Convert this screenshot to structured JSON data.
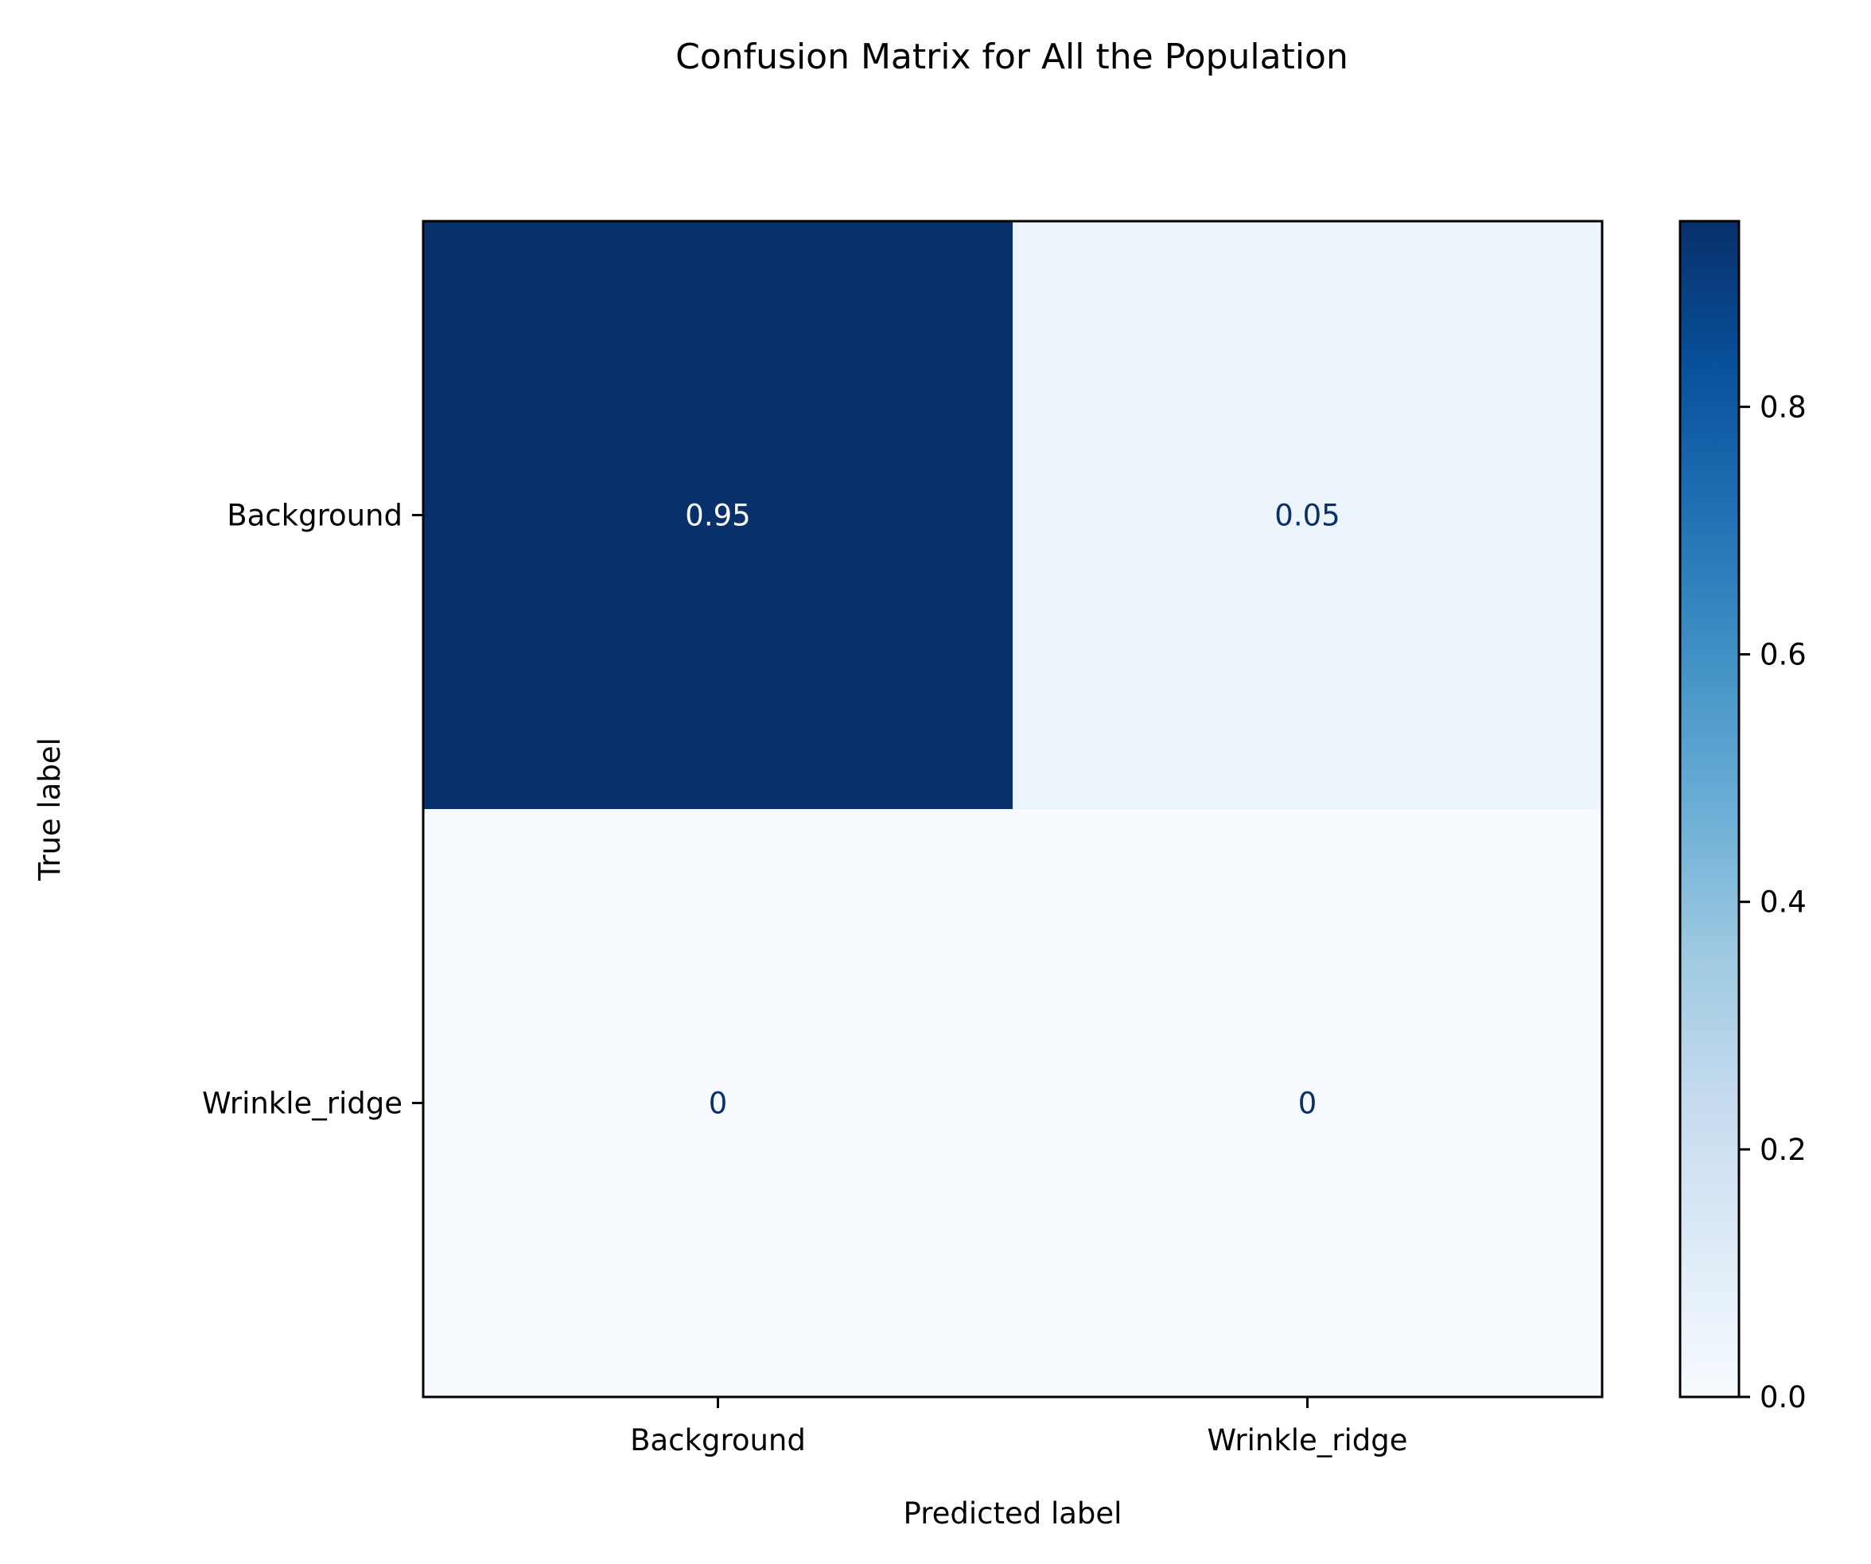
{
  "chart_data": {
    "type": "heatmap",
    "title": "Confusion Matrix for All the Population",
    "xlabel": "Predicted label",
    "ylabel": "True label",
    "x_categories": [
      "Background",
      "Wrinkle_ridge"
    ],
    "y_categories": [
      "Background",
      "Wrinkle_ridge"
    ],
    "values": [
      [
        0.95,
        0.05
      ],
      [
        0,
        0
      ]
    ],
    "cell_labels": [
      [
        "0.95",
        "0.05"
      ],
      [
        "0",
        "0"
      ]
    ],
    "colormap": "Blues",
    "colorbar": {
      "range": [
        0.0,
        0.95
      ],
      "ticks": [
        0.0,
        0.2,
        0.4,
        0.6,
        0.8
      ],
      "tick_labels": [
        "0.0",
        "0.2",
        "0.4",
        "0.6",
        "0.8"
      ]
    }
  },
  "colors": {
    "dark_text": "#08306b",
    "light_text": "#ffffff",
    "axis": "#000000"
  }
}
